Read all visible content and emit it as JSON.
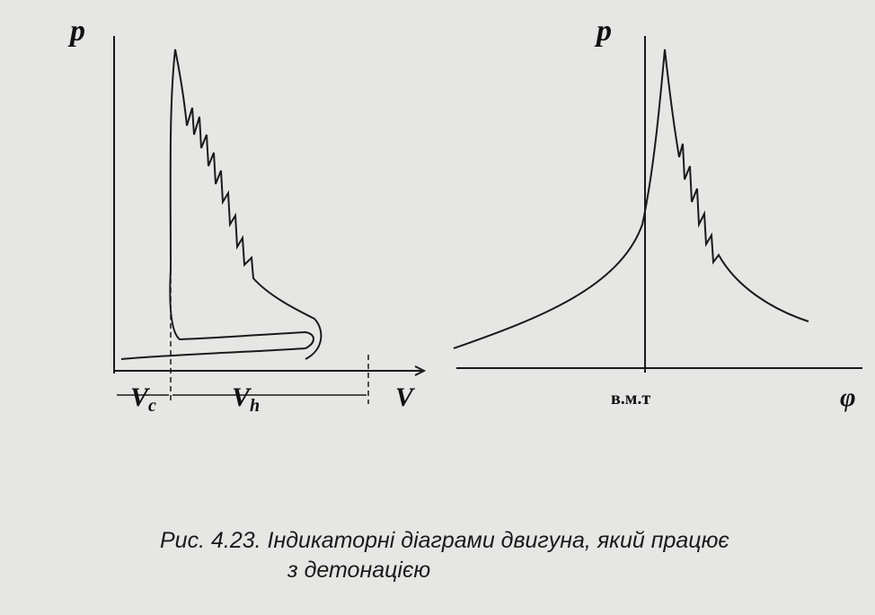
{
  "left_diagram": {
    "y_label": "p",
    "vc_label": {
      "symbol": "V",
      "sub": "c"
    },
    "vh_label": {
      "symbol": "V",
      "sub": "h"
    },
    "x_label": "V"
  },
  "right_diagram": {
    "y_label": "p",
    "tdc_label": "в.м.т",
    "x_label": "φ"
  },
  "caption": {
    "line1": "Рис. 4.23. Індикаторні діаграми двигуна, який працює",
    "line2": "з детонацією"
  }
}
